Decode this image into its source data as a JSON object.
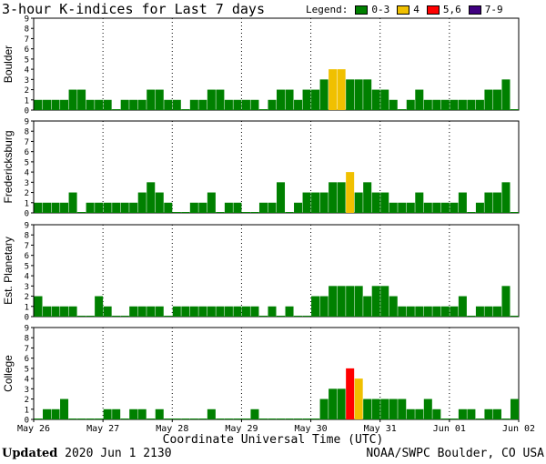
{
  "title": "3-hour K-indices for Last 7 days",
  "legend": {
    "label": "Legend:",
    "items": [
      {
        "label": "0-3",
        "color": "#008000"
      },
      {
        "label": "4",
        "color": "#f0c000"
      },
      {
        "label": "5,6",
        "color": "#ff0000"
      },
      {
        "label": "7-9",
        "color": "#400080"
      }
    ]
  },
  "footer": {
    "xlabel": "Coordinate Universal Time (UTC)",
    "updated_label": "Updated",
    "updated_value": "2020 Jun  1 2130",
    "credit": "NOAA/SWPC Boulder, CO USA"
  },
  "chart_data": {
    "type": "bar",
    "x_ticks": [
      "May 26",
      "May 27",
      "May 28",
      "May 29",
      "May 30",
      "May 31",
      "Jun 01",
      "Jun 02"
    ],
    "ylim": [
      0,
      9
    ],
    "y_ticks": [
      "0",
      "1",
      "2",
      "3",
      "4",
      "5",
      "6",
      "7",
      "8",
      "9"
    ],
    "bars_per_day": 8,
    "color_scale": {
      "0-3": "#008000",
      "4": "#f0c000",
      "5,6": "#ff0000",
      "7-9": "#400080"
    },
    "panels": [
      {
        "name": "Boulder",
        "values": [
          1,
          1,
          1,
          1,
          2,
          2,
          1,
          1,
          1,
          0,
          1,
          1,
          1,
          2,
          2,
          1,
          1,
          0,
          1,
          1,
          2,
          2,
          1,
          1,
          1,
          1,
          0,
          1,
          2,
          2,
          1,
          2,
          2,
          3,
          4,
          4,
          3,
          3,
          3,
          2,
          2,
          1,
          0,
          1,
          2,
          1,
          1,
          1,
          1,
          1,
          1,
          1,
          2,
          2,
          3,
          0
        ]
      },
      {
        "name": "Fredericksburg",
        "values": [
          1,
          1,
          1,
          1,
          2,
          0,
          1,
          1,
          1,
          1,
          1,
          1,
          2,
          3,
          2,
          1,
          0,
          0,
          1,
          1,
          2,
          0,
          1,
          1,
          0,
          0,
          1,
          1,
          3,
          0,
          1,
          2,
          2,
          2,
          3,
          3,
          4,
          2,
          3,
          2,
          2,
          1,
          1,
          1,
          2,
          1,
          1,
          1,
          1,
          2,
          0,
          1,
          2,
          2,
          3,
          0
        ]
      },
      {
        "name": "Est. Planetary",
        "values": [
          2,
          1,
          1,
          1,
          1,
          0,
          0,
          2,
          1,
          0,
          0,
          1,
          1,
          1,
          1,
          0,
          1,
          1,
          1,
          1,
          1,
          1,
          1,
          1,
          1,
          1,
          0,
          1,
          0,
          1,
          0,
          0,
          2,
          2,
          3,
          3,
          3,
          3,
          2,
          3,
          3,
          2,
          1,
          1,
          1,
          1,
          1,
          1,
          1,
          2,
          0,
          1,
          1,
          1,
          3,
          0
        ]
      },
      {
        "name": "College",
        "values": [
          0,
          1,
          1,
          2,
          0,
          0,
          0,
          0,
          1,
          1,
          0,
          1,
          1,
          0,
          1,
          0,
          0,
          0,
          0,
          0,
          1,
          0,
          0,
          0,
          0,
          1,
          0,
          0,
          0,
          0,
          0,
          0,
          0,
          2,
          3,
          3,
          5,
          4,
          2,
          2,
          2,
          2,
          2,
          1,
          1,
          2,
          1,
          0,
          0,
          1,
          1,
          0,
          1,
          1,
          0,
          2
        ]
      }
    ]
  }
}
